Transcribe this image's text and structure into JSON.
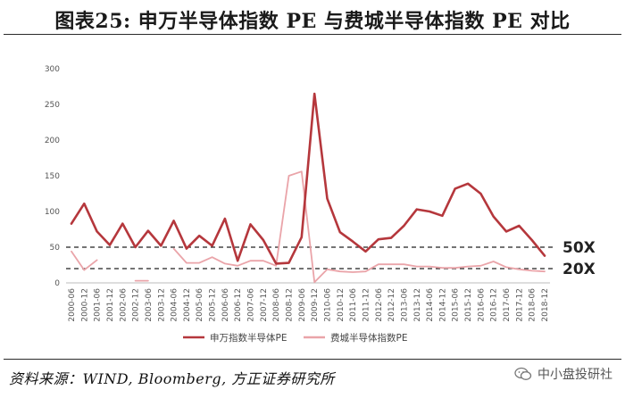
{
  "header": {
    "title": "图表25:   申万半导体指数 PE 与费城半导体指数 PE 对比"
  },
  "footer": {
    "source": "资料来源：WIND, Bloomberg, 方正证券研究所",
    "watermark": "中小盘投研社",
    "watermark_icon": "wechat-icon"
  },
  "chart_data": {
    "type": "line",
    "ylim": [
      0,
      300
    ],
    "yticks": [
      "0",
      "50",
      "100",
      "150",
      "200",
      "250",
      "300"
    ],
    "x": [
      "2000-06",
      "2000-12",
      "2001-06",
      "2001-12",
      "2002-06",
      "2002-12",
      "2003-06",
      "2003-12",
      "2004-06",
      "2004-12",
      "2005-06",
      "2005-12",
      "2006-06",
      "2006-12",
      "2007-06",
      "2007-12",
      "2008-06",
      "2008-12",
      "2009-06",
      "2009-12",
      "2010-06",
      "2010-12",
      "2011-06",
      "2011-12",
      "2012-06",
      "2012-12",
      "2013-06",
      "2013-12",
      "2014-06",
      "2014-12",
      "2015-06",
      "2015-12",
      "2016-06",
      "2016-12",
      "2017-06",
      "2017-12",
      "2018-06",
      "2018-12"
    ],
    "series": [
      {
        "name": "申万指数半导体PE",
        "color": "#b5373c",
        "values": [
          83,
          111,
          72,
          53,
          83,
          50,
          73,
          52,
          87,
          48,
          66,
          52,
          90,
          31,
          82,
          60,
          27,
          28,
          64,
          265,
          118,
          71,
          58,
          44,
          61,
          63,
          80,
          103,
          100,
          94,
          132,
          139,
          125,
          93,
          72,
          80,
          60,
          38
        ]
      },
      {
        "name": "费城半导体指数PE",
        "color": "#eaa4a9",
        "values": [
          44,
          18,
          32,
          null,
          null,
          3,
          3,
          null,
          48,
          28,
          28,
          36,
          27,
          24,
          31,
          31,
          24,
          150,
          156,
          1,
          19,
          16,
          15,
          16,
          26,
          26,
          26,
          23,
          23,
          21,
          21,
          23,
          24,
          30,
          22,
          19,
          17,
          16
        ]
      }
    ],
    "reference_lines": [
      {
        "label": "50X",
        "value": 50
      },
      {
        "label": "20X",
        "value": 20
      }
    ],
    "legend_position": "bottom"
  }
}
